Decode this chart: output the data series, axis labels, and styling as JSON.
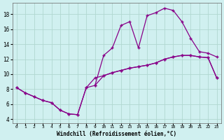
{
  "xlabel": "Windchill (Refroidissement éolien,°C)",
  "background_color": "#d0f0f0",
  "grid_color": "#b0d8d0",
  "line_color": "#880088",
  "xlim": [
    -0.5,
    23.5
  ],
  "ylim": [
    3.5,
    19.5
  ],
  "xticks": [
    0,
    1,
    2,
    3,
    4,
    5,
    6,
    7,
    8,
    9,
    10,
    11,
    12,
    13,
    14,
    15,
    16,
    17,
    18,
    19,
    20,
    21,
    22,
    23
  ],
  "yticks": [
    4,
    6,
    8,
    10,
    12,
    14,
    16,
    18
  ],
  "series1_x": [
    0,
    1,
    2,
    3,
    4,
    5,
    6,
    7,
    8,
    9,
    10,
    11,
    12,
    13,
    14,
    15,
    16,
    17,
    18,
    19,
    20,
    21,
    22,
    23
  ],
  "series1_y": [
    8.2,
    7.5,
    7.0,
    6.5,
    6.2,
    5.2,
    4.7,
    4.6,
    8.2,
    9.5,
    9.8,
    10.2,
    10.5,
    10.8,
    11.0,
    11.2,
    11.5,
    12.0,
    12.3,
    12.5,
    12.5,
    12.3,
    12.2,
    9.5
  ],
  "series2_x": [
    0,
    1,
    2,
    3,
    4,
    5,
    6,
    7,
    8,
    9,
    10,
    11,
    12,
    13,
    14,
    15,
    16,
    17,
    18,
    19,
    20,
    21,
    22,
    23
  ],
  "series2_y": [
    8.2,
    7.5,
    7.0,
    6.5,
    6.2,
    5.2,
    4.7,
    4.6,
    8.2,
    8.5,
    12.5,
    13.5,
    16.5,
    17.0,
    13.5,
    17.8,
    18.2,
    18.8,
    18.5,
    17.0,
    14.8,
    13.0,
    12.8,
    12.3
  ],
  "series3_x": [
    9,
    10,
    11,
    12,
    13,
    14,
    15,
    16,
    17,
    18,
    19,
    20,
    21,
    22,
    23
  ],
  "series3_y": [
    8.5,
    9.8,
    10.2,
    10.5,
    10.8,
    11.0,
    11.2,
    11.5,
    12.0,
    12.3,
    12.5,
    12.5,
    12.3,
    12.2,
    9.5
  ]
}
